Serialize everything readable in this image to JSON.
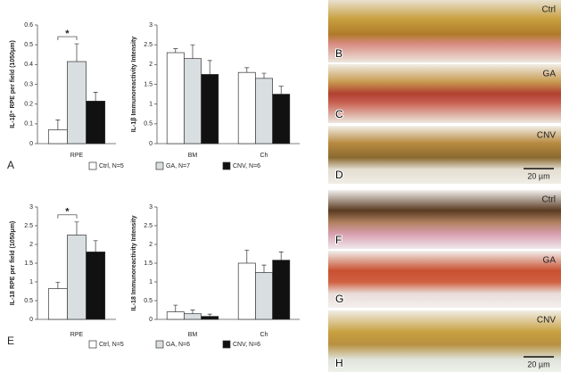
{
  "chart_data": [
    {
      "type": "bar",
      "panel_letter": "A",
      "y_label": "IL-1β⁺ RPE per field (1050μm)",
      "categories": [
        "RPE"
      ],
      "series": [
        {
          "color": "#ffffff",
          "values": [
            0.07
          ],
          "errors": [
            0.05
          ]
        },
        {
          "color": "#d9dee1",
          "values": [
            0.415
          ],
          "errors": [
            0.09
          ]
        },
        {
          "color": "#111111",
          "values": [
            0.215
          ],
          "errors": [
            0.045
          ]
        }
      ],
      "ylim": [
        0,
        0.6
      ],
      "yticks": [
        0,
        0.1,
        0.2,
        0.3,
        0.4,
        0.5,
        0.6
      ],
      "annotation": "*"
    },
    {
      "type": "bar",
      "y_label": "IL-1β Immunoreactivity Intensity",
      "categories": [
        "BM",
        "Ch"
      ],
      "series": [
        {
          "name": "Ctrl, N=5",
          "color": "#ffffff",
          "values": [
            2.3,
            1.8
          ],
          "errors": [
            0.1,
            0.12
          ]
        },
        {
          "name": "GA, N=7",
          "color": "#d9dee1",
          "values": [
            2.15,
            1.65
          ],
          "errors": [
            0.35,
            0.13
          ]
        },
        {
          "name": "CNV, N=6",
          "color": "#111111",
          "values": [
            1.75,
            1.25
          ],
          "errors": [
            0.35,
            0.2
          ]
        }
      ],
      "ylim": [
        0,
        3
      ],
      "yticks": [
        0,
        0.5,
        1,
        1.5,
        2,
        2.5,
        3
      ],
      "legend": "bottom"
    },
    {
      "type": "bar",
      "panel_letter": "E",
      "y_label": "IL-18 RPE per field (1050μm)",
      "categories": [
        "RPE"
      ],
      "series": [
        {
          "color": "#ffffff",
          "values": [
            0.82
          ],
          "errors": [
            0.17
          ]
        },
        {
          "color": "#d9dee1",
          "values": [
            2.25
          ],
          "errors": [
            0.35
          ]
        },
        {
          "color": "#111111",
          "values": [
            1.8
          ],
          "errors": [
            0.3
          ]
        }
      ],
      "ylim": [
        0,
        3
      ],
      "yticks": [
        0,
        0.5,
        1,
        1.5,
        2,
        2.5,
        3
      ],
      "annotation": "*"
    },
    {
      "type": "bar",
      "y_label": "IL-18 Immunoreactivity Intensity",
      "categories": [
        "BM",
        "Ch"
      ],
      "series": [
        {
          "name": "Ctrl, N=5",
          "color": "#ffffff",
          "values": [
            0.2,
            1.5
          ],
          "errors": [
            0.18,
            0.35
          ]
        },
        {
          "name": "GA, N=6",
          "color": "#d9dee1",
          "values": [
            0.15,
            1.25
          ],
          "errors": [
            0.1,
            0.2
          ]
        },
        {
          "name": "CNV, N=6",
          "color": "#111111",
          "values": [
            0.08,
            1.58
          ],
          "errors": [
            0.06,
            0.22
          ]
        }
      ],
      "ylim": [
        0,
        3
      ],
      "yticks": [
        0,
        0.5,
        1,
        1.5,
        2,
        2.5,
        3
      ],
      "legend": "bottom"
    }
  ],
  "panels": [
    {
      "letter": "B",
      "condition": "Ctrl"
    },
    {
      "letter": "C",
      "condition": "GA"
    },
    {
      "letter": "D",
      "condition": "CNV",
      "scale": "20 µm"
    },
    {
      "letter": "F",
      "condition": "Ctrl"
    },
    {
      "letter": "G",
      "condition": "GA"
    },
    {
      "letter": "H",
      "condition": "CNV",
      "scale": "20 µm"
    }
  ]
}
